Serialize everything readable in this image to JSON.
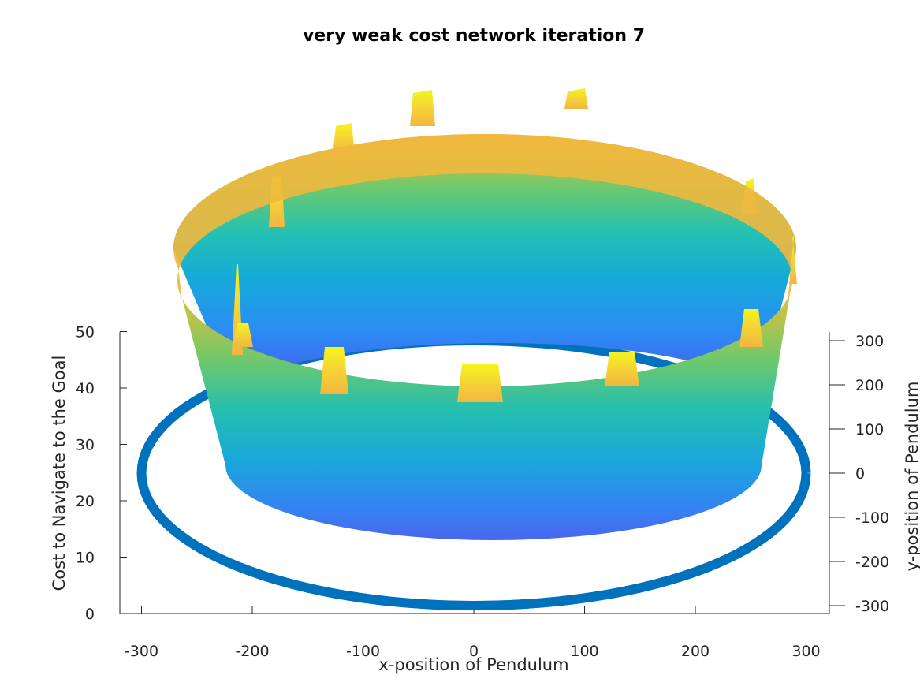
{
  "chart_data": {
    "type": "surface3d",
    "title": "very weak cost network iteration 7",
    "xlabel": "x-position of Pendulum",
    "ylabel": "y-position of Pendulum",
    "zlabel": "Cost to Navigate to the Goal",
    "xlim": [
      -320,
      320
    ],
    "ylim": [
      -320,
      320
    ],
    "zlim": [
      0,
      50
    ],
    "x_ticks": [
      -300,
      -200,
      -100,
      0,
      100,
      200,
      300
    ],
    "y_ticks": [
      -300,
      -200,
      -100,
      0,
      100,
      200,
      300
    ],
    "z_ticks": [
      0,
      10,
      20,
      30,
      40,
      50
    ],
    "grid": false,
    "colormap": "parula",
    "colormap_colors": [
      "#3e26a8",
      "#4a5cf0",
      "#2f8df5",
      "#17b4d6",
      "#2bc8a3",
      "#8ccc5e",
      "#e0b93b",
      "#fcc63d",
      "#f9fb15"
    ],
    "series": [
      {
        "style": "scatter-ring",
        "color": "#0072bd",
        "radius": 300,
        "z": 0
      },
      {
        "style": "surface-ring",
        "inner_radius": 255,
        "outer_radius": 300,
        "cost_min": 10,
        "cost_rim": 43,
        "spike_angles_deg": [
          -90,
          -65,
          -40,
          -20,
          10,
          30,
          55,
          90,
          115,
          135,
          160,
          200,
          225
        ],
        "spike_cost": 50
      }
    ]
  }
}
